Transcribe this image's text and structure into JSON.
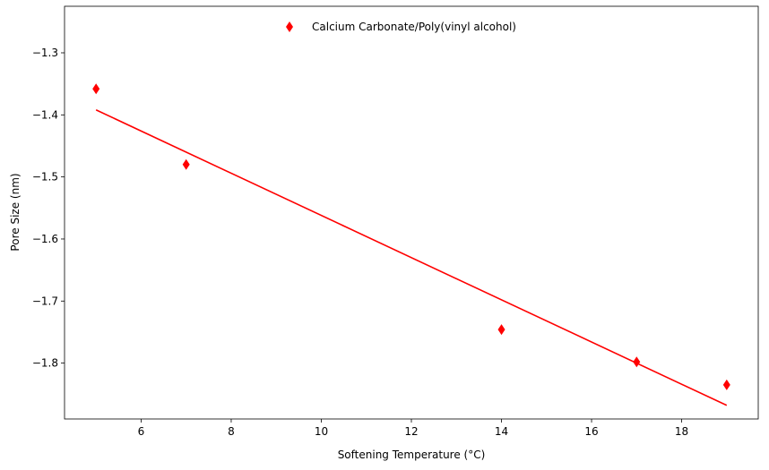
{
  "chart_data": {
    "type": "scatter",
    "xlabel": "Softening Temperature (°C)",
    "ylabel": "Pore Size (nm)",
    "xlim": [
      4.3,
      19.7
    ],
    "ylim": [
      -1.89,
      -1.225
    ],
    "x_ticks": [
      6,
      8,
      10,
      12,
      14,
      16,
      18
    ],
    "y_ticks": [
      -1.3,
      -1.4,
      -1.5,
      -1.6,
      -1.7,
      -1.8
    ],
    "x_tick_labels": [
      "6",
      "8",
      "10",
      "12",
      "14",
      "16",
      "18"
    ],
    "y_tick_labels": [
      "−1.3",
      "−1.4",
      "−1.5",
      "−1.6",
      "−1.7",
      "−1.8"
    ],
    "grid": false,
    "legend_position": "top-center",
    "series": [
      {
        "name": "Calcium Carbonate/Poly(vinyl alcohol)",
        "marker": "thin-diamond",
        "color": "#ff0000",
        "points": [
          {
            "x": 5,
            "y": -1.358
          },
          {
            "x": 7,
            "y": -1.48
          },
          {
            "x": 14,
            "y": -1.746
          },
          {
            "x": 17,
            "y": -1.798
          },
          {
            "x": 19,
            "y": -1.835
          }
        ]
      }
    ],
    "fit_line": {
      "color": "#ff0000",
      "x": [
        5,
        19
      ],
      "y": [
        -1.392,
        -1.868
      ]
    }
  }
}
